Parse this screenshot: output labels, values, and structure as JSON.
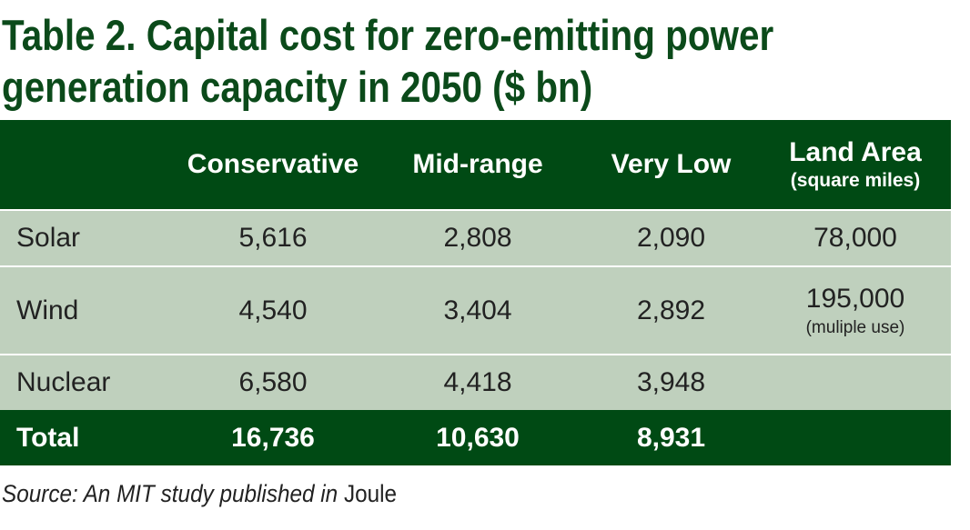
{
  "title": {
    "line1": "Table 2. Capital cost for zero-emitting power",
    "line2": "generation capacity in 2050 ($ bn)"
  },
  "colors": {
    "header_bg": "#004a14",
    "row_bg": "#bfd0bd",
    "title": "#0b4a1a"
  },
  "headers": {
    "c1": "Conservative",
    "c2": "Mid-range",
    "c3": "Very Low",
    "c4": "Land Area",
    "c4_sub": "(square miles)"
  },
  "rows": [
    {
      "label": "Solar",
      "c1": "5,616",
      "c2": "2,808",
      "c3": "2,090",
      "c4": "78,000"
    },
    {
      "label": "Wind",
      "c1": "4,540",
      "c2": "3,404",
      "c3": "2,892",
      "c4": "195,000",
      "c4_note": "(muliple use)"
    },
    {
      "label": "Nuclear",
      "c1": "6,580",
      "c2": "4,418",
      "c3": "3,948",
      "c4": ""
    }
  ],
  "total": {
    "label": "Total",
    "c1": "16,736",
    "c2": "10,630",
    "c3": "8,931"
  },
  "source": {
    "prefix": "Source: An MIT study published in",
    "journal": "Joule"
  },
  "chart_data": {
    "type": "table",
    "title": "Table 2. Capital cost for zero-emitting power generation capacity in 2050 ($ bn)",
    "columns": [
      "",
      "Conservative",
      "Mid-range",
      "Very Low",
      "Land Area (square miles)"
    ],
    "rows": [
      [
        "Solar",
        5616,
        2808,
        2090,
        78000
      ],
      [
        "Wind",
        4540,
        3404,
        2892,
        195000
      ],
      [
        "Nuclear",
        6580,
        4418,
        3948,
        null
      ],
      [
        "Total",
        16736,
        10630,
        8931,
        null
      ]
    ]
  }
}
